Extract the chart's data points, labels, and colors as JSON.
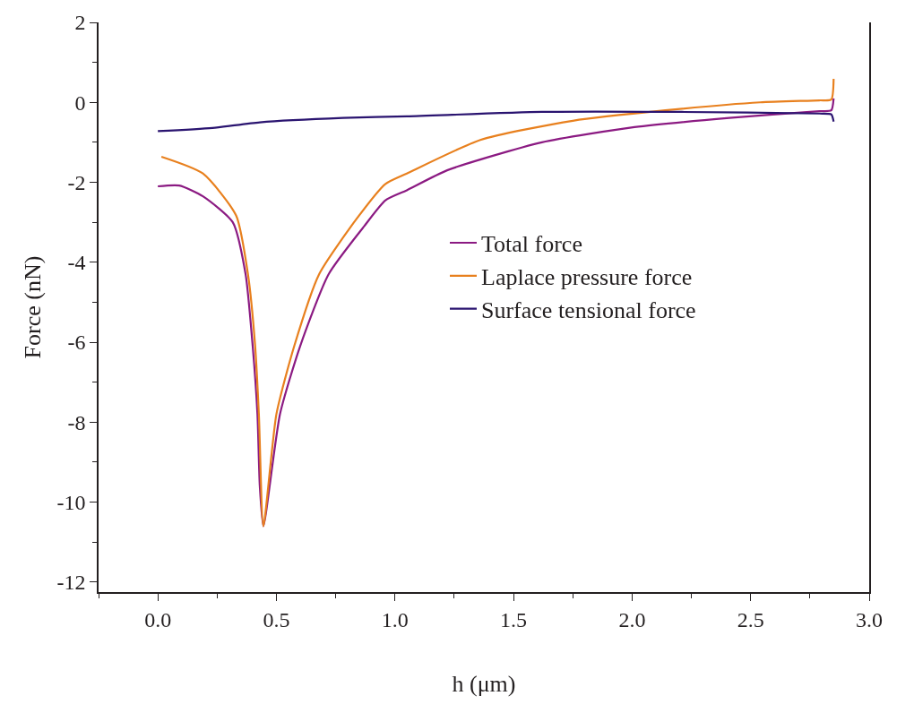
{
  "chart_data": {
    "type": "line",
    "xlabel": "h (μm)",
    "ylabel": "Force (nN)",
    "xlim": [
      -0.25,
      3.0
    ],
    "ylim": [
      -12.25,
      2
    ],
    "xticks": [
      {
        "value": 0,
        "label": "0.0"
      },
      {
        "value": 0.5,
        "label": "0.5"
      },
      {
        "value": 1,
        "label": "1.0"
      },
      {
        "value": 1.5,
        "label": "1.5"
      },
      {
        "value": 2,
        "label": "2.0"
      },
      {
        "value": 2.5,
        "label": "2.5"
      },
      {
        "value": 3,
        "label": "3.0"
      }
    ],
    "yticks": [
      2,
      0,
      -2,
      -4,
      -6,
      -8,
      -10,
      -12
    ],
    "legend": "center",
    "marker": "none",
    "line_style": "solid",
    "series": [
      {
        "name": "Total force",
        "color": "#8b1a82",
        "x": [
          0,
          0.09,
          0.19,
          0.316,
          0.37,
          0.4,
          0.42,
          0.43,
          0.445,
          0.515,
          0.6,
          0.72,
          0.87,
          0.96,
          1.05,
          1.22,
          1.62,
          2.01,
          2.41,
          2.79,
          2.84,
          2.85
        ],
        "values": [
          -2.1,
          -2.08,
          -2.35,
          -3.0,
          -4.3,
          -6.1,
          -7.8,
          -9.6,
          -10.6,
          -7.8,
          -6.1,
          -4.3,
          -3.1,
          -2.45,
          -2.2,
          -1.7,
          -1.0,
          -0.62,
          -0.39,
          -0.22,
          -0.2,
          0.1
        ]
      },
      {
        "name": "Laplace pressure force",
        "color": "#e8801e",
        "x": [
          0.015,
          0.19,
          0.33,
          0.38,
          0.41,
          0.426,
          0.445,
          0.5,
          0.575,
          0.68,
          0.84,
          0.96,
          1.05,
          1.36,
          1.75,
          2.14,
          2.54,
          2.79,
          2.84,
          2.85
        ],
        "values": [
          -1.36,
          -1.78,
          -2.83,
          -4.3,
          -6.07,
          -7.8,
          -10.6,
          -7.8,
          -6.1,
          -4.3,
          -2.9,
          -2.04,
          -1.78,
          -0.94,
          -0.46,
          -0.2,
          0.0,
          0.05,
          0.07,
          0.59
        ]
      },
      {
        "name": "Surface tensional force",
        "color": "#2a1470",
        "x": [
          0,
          0.23,
          0.43,
          0.78,
          1.05,
          1.62,
          2.21,
          2.79,
          2.84,
          2.85
        ],
        "values": [
          -0.72,
          -0.64,
          -0.5,
          -0.39,
          -0.35,
          -0.24,
          -0.24,
          -0.28,
          -0.3,
          -0.48
        ]
      }
    ]
  }
}
